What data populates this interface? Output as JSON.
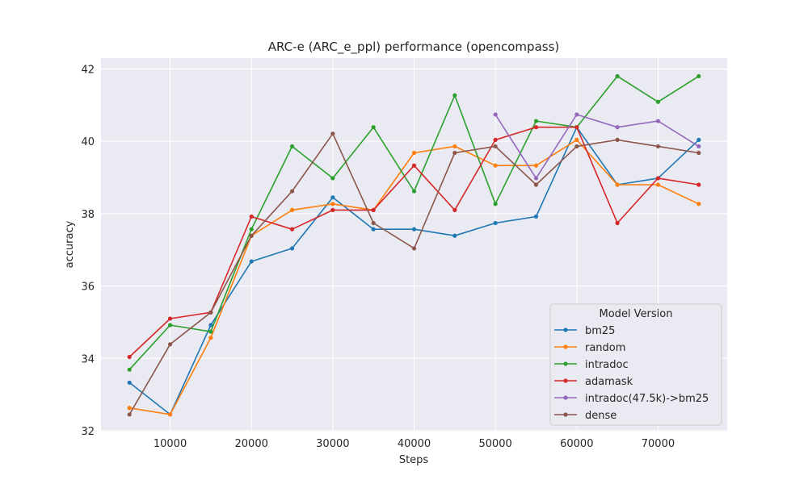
{
  "chart_data": {
    "type": "line",
    "title": "ARC-e (ARC_e_ppl) performance (opencompass)",
    "xlabel": "Steps",
    "ylabel": "accuracy",
    "xlim": [
      1500,
      78500
    ],
    "ylim": [
      32,
      42.3
    ],
    "xticks": [
      10000,
      20000,
      30000,
      40000,
      50000,
      60000,
      70000
    ],
    "yticks": [
      32,
      34,
      36,
      38,
      40,
      42
    ],
    "grid": true,
    "legend": {
      "title": "Model Version",
      "placement": "lower-right"
    },
    "series": [
      {
        "name": "bm25",
        "color": "#1f77b4",
        "x": [
          5000,
          10000,
          15000,
          20000,
          25000,
          30000,
          35000,
          40000,
          45000,
          50000,
          55000,
          60000,
          65000,
          70000,
          75000
        ],
        "values": [
          33.33,
          32.45,
          34.92,
          36.68,
          37.04,
          38.45,
          37.57,
          37.57,
          37.39,
          37.74,
          37.92,
          40.39,
          38.8,
          38.98,
          40.04
        ]
      },
      {
        "name": "random",
        "color": "#ff7f0e",
        "x": [
          5000,
          10000,
          15000,
          20000,
          25000,
          30000,
          35000,
          40000,
          45000,
          50000,
          55000,
          60000,
          65000,
          70000,
          75000
        ],
        "values": [
          32.63,
          32.45,
          34.57,
          37.39,
          38.1,
          38.27,
          38.1,
          39.68,
          39.86,
          39.33,
          39.33,
          40.04,
          38.8,
          38.8,
          38.27
        ]
      },
      {
        "name": "intradoc",
        "color": "#2ca02c",
        "x": [
          5000,
          10000,
          15000,
          20000,
          25000,
          30000,
          35000,
          40000,
          45000,
          50000,
          55000,
          60000,
          65000,
          70000,
          75000
        ],
        "values": [
          33.69,
          34.92,
          34.74,
          37.57,
          39.86,
          38.98,
          40.39,
          38.62,
          41.27,
          38.27,
          40.56,
          40.39,
          41.8,
          41.09,
          41.8
        ]
      },
      {
        "name": "adamask",
        "color": "#d62728",
        "x": [
          5000,
          10000,
          15000,
          20000,
          25000,
          30000,
          35000,
          40000,
          45000,
          50000,
          55000,
          60000,
          65000,
          70000,
          75000
        ],
        "values": [
          34.04,
          35.1,
          35.27,
          37.92,
          37.57,
          38.1,
          38.1,
          39.33,
          38.1,
          40.04,
          40.39,
          40.39,
          37.74,
          38.98,
          38.8
        ]
      },
      {
        "name": "intradoc(47.5k)->bm25",
        "color": "#9467bd",
        "x": [
          50000,
          55000,
          60000,
          65000,
          70000,
          75000
        ],
        "values": [
          40.74,
          38.98,
          40.74,
          40.39,
          40.56,
          39.86
        ]
      },
      {
        "name": "dense",
        "color": "#8c564b",
        "x": [
          5000,
          10000,
          15000,
          20000,
          25000,
          30000,
          35000,
          40000,
          45000,
          50000,
          55000,
          60000,
          65000,
          70000,
          75000
        ],
        "values": [
          32.45,
          34.39,
          35.27,
          37.39,
          38.62,
          40.21,
          37.74,
          37.04,
          39.68,
          39.86,
          38.8,
          39.86,
          40.04,
          39.86,
          39.68
        ]
      }
    ]
  }
}
